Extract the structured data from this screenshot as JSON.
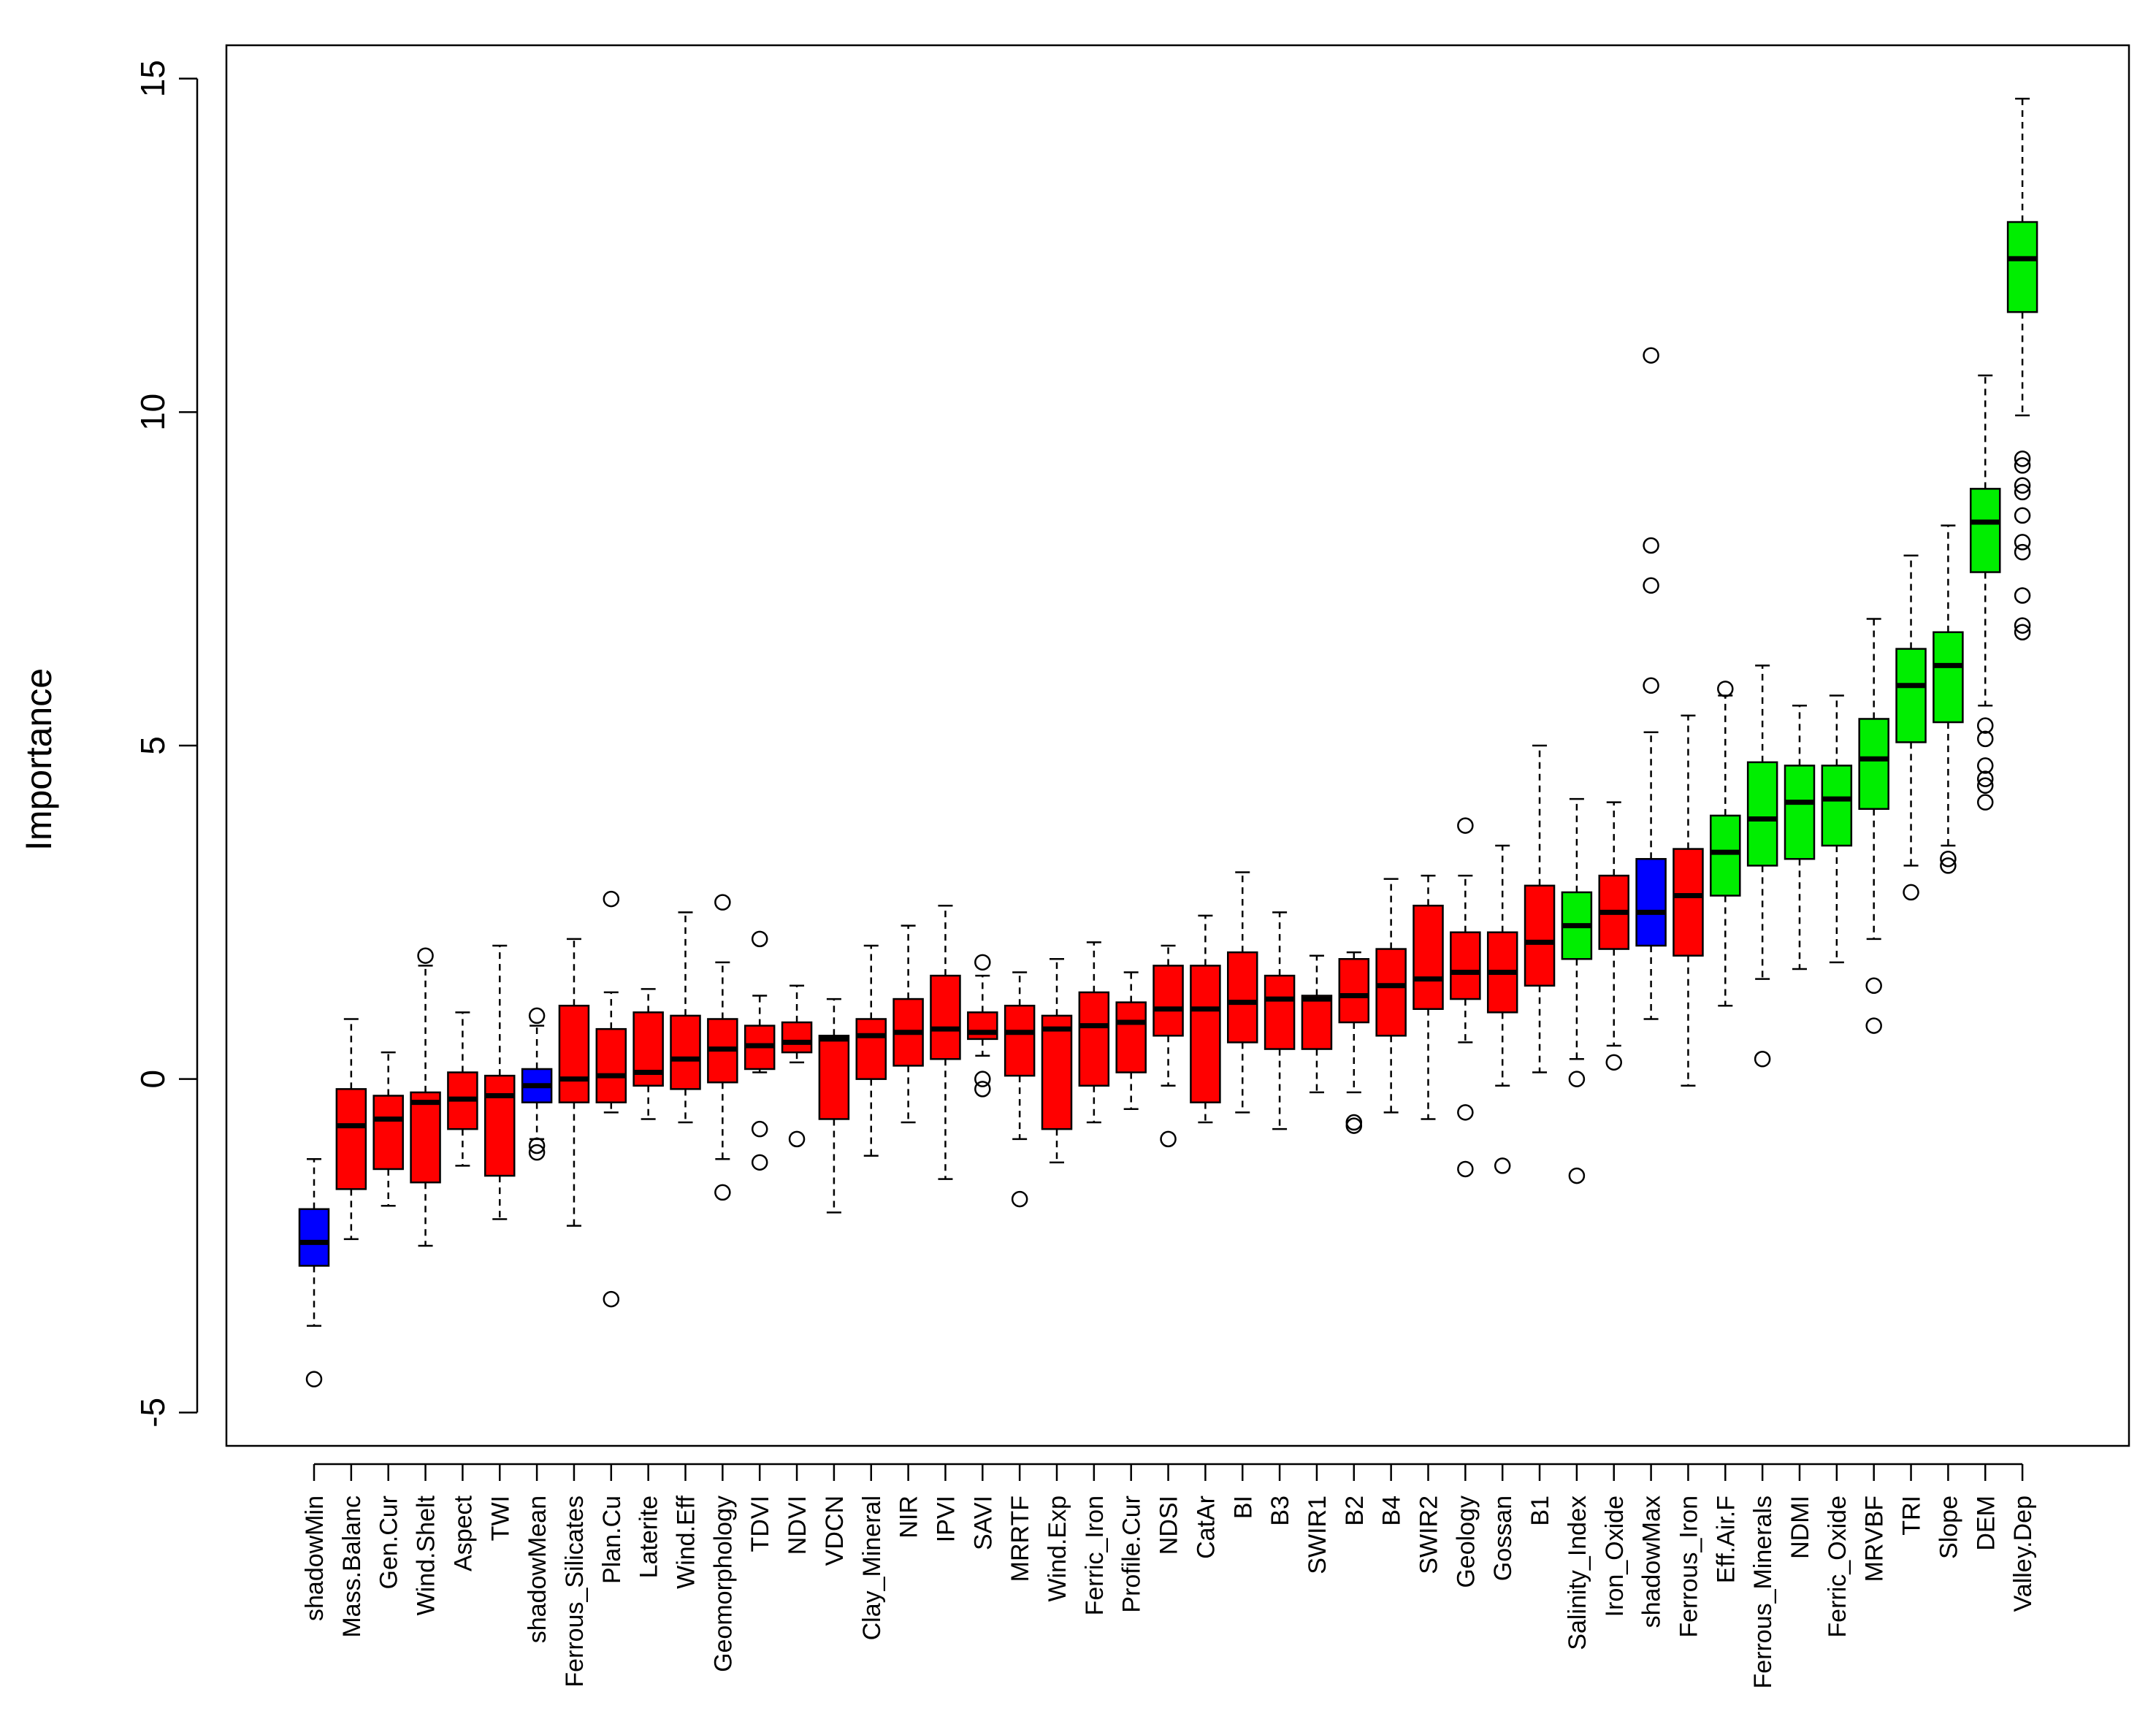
{
  "chart_data": {
    "type": "boxplot",
    "title": "",
    "xlabel": "",
    "ylabel": "Importance",
    "ylim": [
      -5.5,
      15.5
    ],
    "y_ticks": [
      -5,
      0,
      5,
      10,
      15
    ],
    "y_tick_labels": [
      "-5",
      "0",
      "5",
      "10",
      "15"
    ],
    "colors": {
      "Rejected": "#ff0000",
      "Confirmed": "#00ee00",
      "Shadow": "#0000ff"
    },
    "boxes": [
      {
        "label": "shadowMin",
        "status": "Shadow",
        "stats": [
          -3.7,
          -2.8,
          -2.45,
          -1.95,
          -1.2
        ],
        "outliers": [
          -4.5
        ]
      },
      {
        "label": "Mass.Balanc",
        "status": "Rejected",
        "stats": [
          -2.4,
          -1.65,
          -0.7,
          -0.15,
          0.9
        ],
        "outliers": []
      },
      {
        "label": "Gen.Cur",
        "status": "Rejected",
        "stats": [
          -1.9,
          -1.35,
          -0.6,
          -0.25,
          0.4
        ],
        "outliers": []
      },
      {
        "label": "Wind.Shelt",
        "status": "Rejected",
        "stats": [
          -2.5,
          -1.55,
          -0.35,
          -0.2,
          1.7
        ],
        "outliers": [
          1.85
        ]
      },
      {
        "label": "Aspect",
        "status": "Rejected",
        "stats": [
          -1.3,
          -0.75,
          -0.3,
          0.1,
          1.0
        ],
        "outliers": []
      },
      {
        "label": "TWI",
        "status": "Rejected",
        "stats": [
          -2.1,
          -1.45,
          -0.25,
          0.05,
          2.0
        ],
        "outliers": []
      },
      {
        "label": "shadowMean",
        "status": "Shadow",
        "stats": [
          -0.9,
          -0.35,
          -0.1,
          0.15,
          0.8
        ],
        "outliers": [
          0.95,
          -1.0,
          -1.1
        ]
      },
      {
        "label": "Ferrous_Silicates",
        "status": "Rejected",
        "stats": [
          -2.2,
          -0.35,
          0.0,
          1.1,
          2.1
        ],
        "outliers": []
      },
      {
        "label": "Plan.Cu",
        "status": "Rejected",
        "stats": [
          -0.5,
          -0.35,
          0.05,
          0.75,
          1.3
        ],
        "outliers": [
          2.7,
          -3.3
        ]
      },
      {
        "label": "Laterite",
        "status": "Rejected",
        "stats": [
          -0.6,
          -0.1,
          0.1,
          1.0,
          1.35
        ],
        "outliers": []
      },
      {
        "label": "Wind.Eff",
        "status": "Rejected",
        "stats": [
          -0.65,
          -0.15,
          0.3,
          0.95,
          2.5
        ],
        "outliers": []
      },
      {
        "label": "Geomorphology",
        "status": "Rejected",
        "stats": [
          -1.2,
          -0.05,
          0.45,
          0.9,
          1.75
        ],
        "outliers": [
          2.65,
          -1.7
        ]
      },
      {
        "label": "TDVI",
        "status": "Rejected",
        "stats": [
          0.1,
          0.15,
          0.5,
          0.8,
          1.25
        ],
        "outliers": [
          2.1,
          -0.75,
          -1.25
        ]
      },
      {
        "label": "NDVI",
        "status": "Rejected",
        "stats": [
          0.25,
          0.4,
          0.55,
          0.85,
          1.4
        ],
        "outliers": [
          -0.9
        ]
      },
      {
        "label": "VDCN",
        "status": "Rejected",
        "stats": [
          -2.0,
          -0.6,
          0.6,
          0.65,
          1.2
        ],
        "outliers": []
      },
      {
        "label": "Clay_Mineral",
        "status": "Rejected",
        "stats": [
          -1.15,
          0.0,
          0.65,
          0.9,
          2.0
        ],
        "outliers": []
      },
      {
        "label": "NIR",
        "status": "Rejected",
        "stats": [
          -0.65,
          0.2,
          0.7,
          1.2,
          2.3
        ],
        "outliers": []
      },
      {
        "label": "IPVI",
        "status": "Rejected",
        "stats": [
          -1.5,
          0.3,
          0.75,
          1.55,
          2.6
        ],
        "outliers": []
      },
      {
        "label": "SAVI",
        "status": "Rejected",
        "stats": [
          0.35,
          0.6,
          0.7,
          1.0,
          1.55
        ],
        "outliers": [
          1.75,
          0.0,
          -0.15
        ]
      },
      {
        "label": "MRRTF",
        "status": "Rejected",
        "stats": [
          -0.9,
          0.05,
          0.7,
          1.1,
          1.6
        ],
        "outliers": [
          -1.8
        ]
      },
      {
        "label": "Wind.Exp",
        "status": "Rejected",
        "stats": [
          -1.25,
          -0.75,
          0.75,
          0.95,
          1.8
        ],
        "outliers": []
      },
      {
        "label": "Ferric_Iron",
        "status": "Rejected",
        "stats": [
          -0.65,
          -0.1,
          0.8,
          1.3,
          2.05
        ],
        "outliers": []
      },
      {
        "label": "Profile.Cur",
        "status": "Rejected",
        "stats": [
          -0.45,
          0.1,
          0.85,
          1.15,
          1.6
        ],
        "outliers": []
      },
      {
        "label": "NDSI",
        "status": "Rejected",
        "stats": [
          -0.1,
          0.65,
          1.05,
          1.7,
          2.0
        ],
        "outliers": [
          -0.9
        ]
      },
      {
        "label": "CatAr",
        "status": "Rejected",
        "stats": [
          -0.65,
          -0.35,
          1.05,
          1.7,
          2.45
        ],
        "outliers": []
      },
      {
        "label": "BI",
        "status": "Rejected",
        "stats": [
          -0.5,
          0.55,
          1.15,
          1.9,
          3.1
        ],
        "outliers": []
      },
      {
        "label": "B3",
        "status": "Rejected",
        "stats": [
          -0.75,
          0.45,
          1.2,
          1.55,
          2.5
        ],
        "outliers": []
      },
      {
        "label": "SWIR1",
        "status": "Rejected",
        "stats": [
          -0.2,
          0.45,
          1.2,
          1.25,
          1.85
        ],
        "outliers": []
      },
      {
        "label": "B2",
        "status": "Rejected",
        "stats": [
          -0.2,
          0.85,
          1.25,
          1.8,
          1.9
        ],
        "outliers": [
          -0.65,
          -0.7
        ]
      },
      {
        "label": "B4",
        "status": "Rejected",
        "stats": [
          -0.5,
          0.65,
          1.4,
          1.95,
          3.0
        ],
        "outliers": []
      },
      {
        "label": "SWIR2",
        "status": "Rejected",
        "stats": [
          -0.6,
          1.05,
          1.5,
          2.6,
          3.05
        ],
        "outliers": []
      },
      {
        "label": "Geology",
        "status": "Rejected",
        "stats": [
          0.55,
          1.2,
          1.6,
          2.2,
          3.05
        ],
        "outliers": [
          3.8,
          -0.5,
          -1.35
        ]
      },
      {
        "label": "Gossan",
        "status": "Rejected",
        "stats": [
          -0.1,
          1.0,
          1.6,
          2.2,
          3.5
        ],
        "outliers": [
          -1.3
        ]
      },
      {
        "label": "B1",
        "status": "Rejected",
        "stats": [
          0.1,
          1.4,
          2.05,
          2.9,
          5.0
        ],
        "outliers": []
      },
      {
        "label": "Salinity_Index",
        "status": "Confirmed",
        "stats": [
          0.3,
          1.8,
          2.3,
          2.8,
          4.2
        ],
        "outliers": [
          0.0,
          -1.45
        ]
      },
      {
        "label": "Iron_Oxide",
        "status": "Rejected",
        "stats": [
          0.5,
          1.95,
          2.5,
          3.05,
          4.15
        ],
        "outliers": [
          0.25
        ]
      },
      {
        "label": "shadowMax",
        "status": "Shadow",
        "stats": [
          0.9,
          2.0,
          2.5,
          3.3,
          5.2
        ],
        "outliers": [
          5.9,
          7.4,
          8.0,
          10.85
        ]
      },
      {
        "label": "Ferrous_Iron",
        "status": "Rejected",
        "stats": [
          -0.1,
          1.85,
          2.75,
          3.45,
          5.45
        ],
        "outliers": []
      },
      {
        "label": "Eff.Air.F",
        "status": "Confirmed",
        "stats": [
          1.1,
          2.75,
          3.4,
          3.95,
          5.75
        ],
        "outliers": [
          5.85
        ]
      },
      {
        "label": "Ferrous_Minerals",
        "status": "Confirmed",
        "stats": [
          1.5,
          3.2,
          3.9,
          4.75,
          6.2
        ],
        "outliers": [
          0.3
        ]
      },
      {
        "label": "NDMI",
        "status": "Confirmed",
        "stats": [
          1.65,
          3.3,
          4.15,
          4.7,
          5.6
        ],
        "outliers": []
      },
      {
        "label": "Ferric_Oxide",
        "status": "Confirmed",
        "stats": [
          1.75,
          3.5,
          4.2,
          4.7,
          5.75
        ],
        "outliers": []
      },
      {
        "label": "MRVBF",
        "status": "Confirmed",
        "stats": [
          2.1,
          4.05,
          4.8,
          5.4,
          6.9
        ],
        "outliers": [
          1.4,
          0.8
        ]
      },
      {
        "label": "TRI",
        "status": "Confirmed",
        "stats": [
          3.2,
          5.05,
          5.9,
          6.45,
          7.85
        ],
        "outliers": [
          2.8
        ]
      },
      {
        "label": "Slope",
        "status": "Confirmed",
        "stats": [
          3.5,
          5.35,
          6.2,
          6.7,
          8.3
        ],
        "outliers": [
          3.3,
          3.2
        ]
      },
      {
        "label": "DEM",
        "status": "Confirmed",
        "stats": [
          5.6,
          7.6,
          8.35,
          8.85,
          10.55
        ],
        "outliers": [
          5.3,
          5.1,
          4.7,
          4.5,
          4.4,
          4.15
        ]
      },
      {
        "label": "Valley.Dep",
        "status": "Confirmed",
        "stats": [
          9.95,
          11.5,
          12.3,
          12.85,
          14.7
        ],
        "outliers": [
          9.3,
          9.2,
          8.9,
          8.8,
          8.45,
          8.05,
          7.9,
          7.25,
          6.8,
          6.7
        ]
      }
    ]
  }
}
